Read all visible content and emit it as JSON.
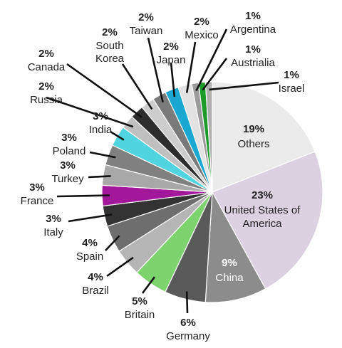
{
  "chart_data": {
    "type": "pie",
    "start_angle_deg": 90,
    "direction": "clockwise",
    "legend": "none",
    "slices": [
      {
        "pct": "19%",
        "value": 19,
        "name_lines": [
          "Others"
        ],
        "color": "#ebebeb",
        "label": "inside"
      },
      {
        "pct": "23%",
        "value": 23,
        "name_lines": [
          "United States of",
          "America"
        ],
        "color": "#dcd1e0",
        "label": "inside"
      },
      {
        "pct": "9%",
        "value": 9,
        "name_lines": [
          "China"
        ],
        "color": "#8c8c8c",
        "label": "inside-white"
      },
      {
        "pct": "6%",
        "value": 6,
        "name_lines": [
          "Germany"
        ],
        "color": "#5a5a5a",
        "label": "outside"
      },
      {
        "pct": "5%",
        "value": 5,
        "name_lines": [
          "Britain"
        ],
        "color": "#7dd36e",
        "label": "outside"
      },
      {
        "pct": "4%",
        "value": 4,
        "name_lines": [
          "Brazil"
        ],
        "color": "#b5b5b5",
        "label": "outside"
      },
      {
        "pct": "4%",
        "value": 4,
        "name_lines": [
          "Spain"
        ],
        "color": "#6e6e6e",
        "label": "outside"
      },
      {
        "pct": "3%",
        "value": 3,
        "name_lines": [
          "Italy"
        ],
        "color": "#333333",
        "label": "outside"
      },
      {
        "pct": "3%",
        "value": 3,
        "name_lines": [
          "France"
        ],
        "color": "#a3189b",
        "label": "outside"
      },
      {
        "pct": "3%",
        "value": 3,
        "name_lines": [
          "Turkey"
        ],
        "color": "#a8a8a8",
        "label": "outside"
      },
      {
        "pct": "3%",
        "value": 3,
        "name_lines": [
          "Poland"
        ],
        "color": "#808080",
        "label": "outside"
      },
      {
        "pct": "3%",
        "value": 3,
        "name_lines": [
          "India"
        ],
        "color": "#4fd4e0",
        "label": "outside"
      },
      {
        "pct": "2%",
        "value": 2,
        "name_lines": [
          "Russia"
        ],
        "color": "#c0c0c0",
        "label": "outside"
      },
      {
        "pct": "2%",
        "value": 2,
        "name_lines": [
          "Canada"
        ],
        "color": "#2d2d2d",
        "label": "outside"
      },
      {
        "pct": "2%",
        "value": 2,
        "name_lines": [
          "South",
          "Korea"
        ],
        "color": "#cdcdcd",
        "label": "outside"
      },
      {
        "pct": "2%",
        "value": 2,
        "name_lines": [
          "Taiwan"
        ],
        "color": "#7a7a7a",
        "label": "outside"
      },
      {
        "pct": "2%",
        "value": 2,
        "name_lines": [
          "Japan"
        ],
        "color": "#1aa7d2",
        "label": "outside"
      },
      {
        "pct": "2%",
        "value": 2,
        "name_lines": [
          "Mexico"
        ],
        "color": "#e2e2e2",
        "label": "outside"
      },
      {
        "pct": "1%",
        "value": 1,
        "name_lines": [
          "Argentina"
        ],
        "color": "#9b9b9b",
        "label": "outside"
      },
      {
        "pct": "1%",
        "value": 1,
        "name_lines": [
          "Austrialia"
        ],
        "color": "#1c9a2a",
        "label": "outside"
      },
      {
        "pct": "1%",
        "value": 1,
        "name_lines": [
          "Israel"
        ],
        "color": "#b0b0b0",
        "label": "outside"
      }
    ]
  }
}
